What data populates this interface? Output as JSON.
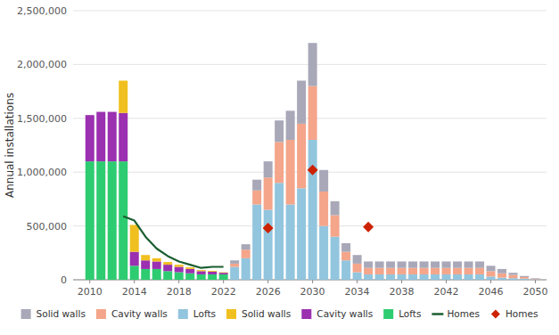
{
  "chart_data": {
    "type": "bar",
    "stacked": true,
    "grid": true,
    "ylabel": "Annual installations",
    "x": [
      2010,
      2011,
      2012,
      2013,
      2014,
      2015,
      2016,
      2017,
      2018,
      2019,
      2020,
      2021,
      2022,
      2023,
      2024,
      2025,
      2026,
      2027,
      2028,
      2029,
      2030,
      2031,
      2032,
      2033,
      2034,
      2035,
      2036,
      2037,
      2038,
      2039,
      2040,
      2041,
      2042,
      2043,
      2044,
      2045,
      2046,
      2047,
      2048,
      2049,
      2050
    ],
    "xlim": [
      2008.5,
      2051
    ],
    "xticks": [
      2010,
      2014,
      2018,
      2022,
      2026,
      2030,
      2034,
      2038,
      2042,
      2046,
      2050
    ],
    "ylim": [
      0,
      2500000
    ],
    "yticks": [
      0,
      {
        "value": 500000,
        "label": "500,000"
      },
      {
        "value": 1000000,
        "label": "1,000,000"
      },
      {
        "value": 1500000,
        "label": "1,500,000"
      },
      {
        "value": 2000000,
        "label": "2,000,000"
      },
      {
        "value": 2500000,
        "label": "2,500,000"
      }
    ],
    "series": [
      {
        "name": "Lofts",
        "color": "#2ecc71",
        "values": [
          1100000,
          1100000,
          1100000,
          1100000,
          130000,
          100000,
          100000,
          80000,
          70000,
          60000,
          50000,
          50000,
          50000,
          null,
          null,
          null,
          null,
          null,
          null,
          null,
          null,
          null,
          null,
          null,
          null,
          null,
          null,
          null,
          null,
          null,
          null,
          null,
          null,
          null,
          null,
          null,
          null,
          null,
          null,
          null,
          null
        ]
      },
      {
        "name": "Cavity walls",
        "color": "#9b30b0",
        "values": [
          430000,
          460000,
          460000,
          450000,
          130000,
          80000,
          70000,
          60000,
          50000,
          40000,
          30000,
          25000,
          15000,
          null,
          null,
          null,
          null,
          null,
          null,
          null,
          null,
          null,
          null,
          null,
          null,
          null,
          null,
          null,
          null,
          null,
          null,
          null,
          null,
          null,
          null,
          null,
          null,
          null,
          null,
          null,
          null
        ]
      },
      {
        "name": "Solid walls",
        "color": "#f0c020",
        "values": [
          0,
          0,
          0,
          300000,
          250000,
          50000,
          30000,
          25000,
          20000,
          15000,
          10000,
          8000,
          5000,
          null,
          null,
          null,
          null,
          null,
          null,
          null,
          null,
          null,
          null,
          null,
          null,
          null,
          null,
          null,
          null,
          null,
          null,
          null,
          null,
          null,
          null,
          null,
          null,
          null,
          null,
          null,
          null
        ]
      },
      {
        "name": "Lofts",
        "color": "#92c5de",
        "values": [
          null,
          null,
          null,
          null,
          null,
          null,
          null,
          null,
          null,
          null,
          null,
          null,
          null,
          120000,
          200000,
          700000,
          650000,
          900000,
          700000,
          850000,
          1300000,
          500000,
          400000,
          180000,
          70000,
          50000,
          50000,
          50000,
          50000,
          50000,
          50000,
          50000,
          50000,
          50000,
          50000,
          50000,
          30000,
          20000,
          15000,
          10000,
          5000
        ]
      },
      {
        "name": "Cavity walls",
        "color": "#f4a58a",
        "values": [
          null,
          null,
          null,
          null,
          null,
          null,
          null,
          null,
          null,
          null,
          null,
          null,
          null,
          30000,
          80000,
          130000,
          300000,
          380000,
          600000,
          600000,
          500000,
          320000,
          200000,
          80000,
          80000,
          60000,
          60000,
          60000,
          60000,
          60000,
          60000,
          60000,
          60000,
          60000,
          60000,
          60000,
          50000,
          40000,
          30000,
          15000,
          5000
        ]
      },
      {
        "name": "Solid walls",
        "color": "#a8a8b8",
        "values": [
          null,
          null,
          null,
          null,
          null,
          null,
          null,
          null,
          null,
          null,
          null,
          null,
          null,
          30000,
          50000,
          100000,
          150000,
          200000,
          270000,
          400000,
          400000,
          200000,
          130000,
          80000,
          80000,
          60000,
          60000,
          60000,
          60000,
          60000,
          60000,
          60000,
          60000,
          60000,
          60000,
          60000,
          50000,
          40000,
          20000,
          10000,
          5000
        ]
      },
      {
        "name": "Homes",
        "type": "line",
        "color": "#1a5e30",
        "values": [
          null,
          null,
          null,
          590000,
          550000,
          400000,
          290000,
          220000,
          170000,
          140000,
          110000,
          120000,
          120000,
          null,
          null,
          null,
          null,
          null,
          null,
          null,
          null,
          null,
          null,
          null,
          null,
          null,
          null,
          null,
          null,
          null,
          null,
          null,
          null,
          null,
          null,
          null,
          null,
          null,
          null,
          null,
          null
        ]
      },
      {
        "name": "Homes",
        "type": "scatter",
        "marker": "diamond",
        "color": "#cc2200",
        "values": [
          null,
          null,
          null,
          null,
          null,
          null,
          null,
          null,
          null,
          null,
          null,
          null,
          null,
          null,
          null,
          null,
          480000,
          null,
          null,
          null,
          1020000,
          null,
          null,
          null,
          null,
          490000,
          null,
          null,
          null,
          null,
          null,
          null,
          null,
          null,
          null,
          null,
          null,
          null,
          null,
          null,
          null
        ]
      }
    ]
  }
}
